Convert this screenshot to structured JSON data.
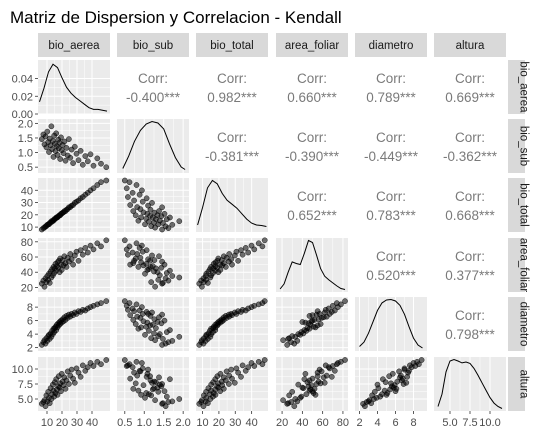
{
  "title": "Matriz de Dispersion y Correlacion - Kendall",
  "variables": [
    "bio_aerea",
    "bio_sub",
    "bio_total",
    "area_foliar",
    "diametro",
    "altura"
  ],
  "colors": {
    "panel_bg": "#ebebeb",
    "grid": "#ffffff",
    "strip_bg": "#d9d9d9",
    "point": "#000000",
    "line": "#000000",
    "corr_text": "#7a7a7a"
  },
  "chart_data": {
    "type": "scatter",
    "subtype": "scatterplot-matrix",
    "title": "Matriz de Dispersion y Correlacion - Kendall",
    "method": "Kendall",
    "diagonal": "density",
    "upper": "correlation",
    "lower": "scatter",
    "axes": [
      {
        "name": "bio_aerea",
        "range": [
          4,
          52
        ],
        "ticks": [
          10,
          20,
          30,
          40
        ],
        "tick_labels": [
          "10",
          "20",
          "30",
          "40"
        ],
        "density_ticks": [
          0.0,
          0.02,
          0.04
        ],
        "density_tick_labels": [
          "0.00",
          "0.02",
          "0.04"
        ],
        "density_max": 0.058
      },
      {
        "name": "bio_sub",
        "range": [
          0.3,
          2.15
        ],
        "ticks": [
          0.5,
          1.0,
          1.5,
          2.0
        ],
        "tick_labels": [
          "0.5",
          "1.0",
          "1.5",
          "2.0"
        ]
      },
      {
        "name": "bio_total",
        "range": [
          6,
          50
        ],
        "ticks": [
          10,
          20,
          30,
          40
        ],
        "tick_labels": [
          "10",
          "20",
          "30",
          "40"
        ]
      },
      {
        "name": "area_foliar",
        "range": [
          14,
          85
        ],
        "ticks": [
          20,
          40,
          60,
          80
        ],
        "tick_labels": [
          "20",
          "40",
          "60",
          "80"
        ]
      },
      {
        "name": "diametro",
        "range": [
          1.5,
          9.5
        ],
        "ticks": [
          2,
          4,
          6,
          8
        ],
        "tick_labels": [
          "2",
          "4",
          "6",
          "8"
        ]
      },
      {
        "name": "altura",
        "range": [
          3.0,
          12.0
        ],
        "ticks": [
          5.0,
          7.5,
          10.0
        ],
        "tick_labels": [
          "5.0",
          "7.5",
          "10.0"
        ]
      }
    ],
    "correlations": [
      {
        "row": "bio_aerea",
        "col": "bio_sub",
        "label": "Corr:",
        "value": "-0.400***"
      },
      {
        "row": "bio_aerea",
        "col": "bio_total",
        "label": "Corr:",
        "value": "0.982***"
      },
      {
        "row": "bio_aerea",
        "col": "area_foliar",
        "label": "Corr:",
        "value": "0.660***"
      },
      {
        "row": "bio_aerea",
        "col": "diametro",
        "label": "Corr:",
        "value": "0.789***"
      },
      {
        "row": "bio_aerea",
        "col": "altura",
        "label": "Corr:",
        "value": "0.669***"
      },
      {
        "row": "bio_sub",
        "col": "bio_total",
        "label": "Corr:",
        "value": "-0.381***"
      },
      {
        "row": "bio_sub",
        "col": "area_foliar",
        "label": "Corr:",
        "value": "-0.390***"
      },
      {
        "row": "bio_sub",
        "col": "diametro",
        "label": "Corr:",
        "value": "-0.449***"
      },
      {
        "row": "bio_sub",
        "col": "altura",
        "label": "Corr:",
        "value": "-0.362***"
      },
      {
        "row": "bio_total",
        "col": "area_foliar",
        "label": "Corr:",
        "value": "0.652***"
      },
      {
        "row": "bio_total",
        "col": "diametro",
        "label": "Corr:",
        "value": "0.783***"
      },
      {
        "row": "bio_total",
        "col": "altura",
        "label": "Corr:",
        "value": "0.668***"
      },
      {
        "row": "area_foliar",
        "col": "diametro",
        "label": "Corr:",
        "value": "0.520***"
      },
      {
        "row": "area_foliar",
        "col": "altura",
        "label": "Corr:",
        "value": "0.377***"
      },
      {
        "row": "diametro",
        "col": "altura",
        "label": "Corr:",
        "value": "0.798***"
      }
    ],
    "densities": {
      "bio_aerea": {
        "x": [
          5,
          8,
          11,
          14,
          17,
          20,
          23,
          26,
          29,
          32,
          35,
          38,
          41,
          44,
          47,
          50
        ],
        "y": [
          0.012,
          0.028,
          0.047,
          0.056,
          0.052,
          0.04,
          0.029,
          0.022,
          0.017,
          0.013,
          0.009,
          0.005,
          0.003,
          0.003,
          0.002,
          0.001
        ]
      },
      "bio_sub": {
        "x": [
          0.45,
          0.6,
          0.75,
          0.9,
          1.05,
          1.2,
          1.35,
          1.5,
          1.65,
          1.8,
          1.95,
          2.05
        ],
        "y": [
          0.05,
          0.3,
          0.6,
          0.82,
          0.95,
          1.0,
          0.97,
          0.85,
          0.55,
          0.27,
          0.08,
          0.03
        ]
      },
      "bio_total": {
        "x": [
          7,
          10,
          13,
          16,
          19,
          22,
          25,
          28,
          31,
          34,
          37,
          40,
          43,
          46,
          49
        ],
        "y": [
          0.1,
          0.45,
          0.85,
          1.0,
          0.93,
          0.74,
          0.6,
          0.52,
          0.44,
          0.33,
          0.22,
          0.14,
          0.1,
          0.09,
          0.07
        ]
      },
      "area_foliar": {
        "x": [
          18,
          22,
          26,
          30,
          34,
          38,
          42,
          46,
          50,
          54,
          58,
          62,
          66,
          70,
          74,
          78,
          82
        ],
        "y": [
          0.02,
          0.12,
          0.35,
          0.55,
          0.52,
          0.5,
          0.72,
          0.97,
          0.93,
          0.68,
          0.42,
          0.27,
          0.2,
          0.14,
          0.08,
          0.03,
          0.01
        ]
      },
      "diametro": {
        "x": [
          2,
          2.5,
          3,
          3.5,
          4,
          4.5,
          5,
          5.5,
          6,
          6.5,
          7,
          7.5,
          8,
          8.5,
          9
        ],
        "y": [
          0.05,
          0.14,
          0.32,
          0.55,
          0.78,
          0.93,
          0.99,
          1.0,
          0.97,
          0.88,
          0.7,
          0.45,
          0.22,
          0.08,
          0.02
        ]
      },
      "altura": {
        "x": [
          3.5,
          4,
          4.5,
          5,
          5.5,
          6,
          6.5,
          7,
          7.5,
          8,
          8.5,
          9,
          9.5,
          10,
          10.5,
          11,
          11.5
        ],
        "y": [
          0.05,
          0.3,
          0.75,
          0.97,
          1.0,
          0.97,
          0.93,
          0.95,
          0.92,
          0.82,
          0.68,
          0.53,
          0.38,
          0.23,
          0.12,
          0.05,
          0.01
        ]
      }
    },
    "observations": [
      {
        "bio_aerea": 6.5,
        "bio_sub": 1.46,
        "bio_total": 8.0,
        "area_foliar": 25,
        "diametro": 2.4,
        "altura": 4.2
      },
      {
        "bio_aerea": 7.6,
        "bio_sub": 1.62,
        "bio_total": 9.2,
        "area_foliar": 29,
        "diametro": 2.8,
        "altura": 4.5
      },
      {
        "bio_aerea": 8.3,
        "bio_sub": 1.28,
        "bio_total": 9.6,
        "area_foliar": 21,
        "diametro": 3.1,
        "altura": 4.8
      },
      {
        "bio_aerea": 9.0,
        "bio_sub": 1.55,
        "bio_total": 10.6,
        "area_foliar": 32,
        "diametro": 2.6,
        "altura": 3.8
      },
      {
        "bio_aerea": 9.6,
        "bio_sub": 1.18,
        "bio_total": 10.8,
        "area_foliar": 27,
        "diametro": 3.4,
        "altura": 5.6
      },
      {
        "bio_aerea": 10.2,
        "bio_sub": 1.72,
        "bio_total": 11.9,
        "area_foliar": 35,
        "diametro": 3.0,
        "altura": 4.6
      },
      {
        "bio_aerea": 10.8,
        "bio_sub": 1.36,
        "bio_total": 12.2,
        "area_foliar": 30,
        "diametro": 3.7,
        "altura": 6.2
      },
      {
        "bio_aerea": 11.3,
        "bio_sub": 1.02,
        "bio_total": 12.3,
        "area_foliar": 38,
        "diametro": 3.9,
        "altura": 5.2
      },
      {
        "bio_aerea": 11.8,
        "bio_sub": 1.48,
        "bio_total": 13.3,
        "area_foliar": 26,
        "diametro": 3.3,
        "altura": 4.3
      },
      {
        "bio_aerea": 12.4,
        "bio_sub": 1.25,
        "bio_total": 13.6,
        "area_foliar": 41,
        "diametro": 4.1,
        "altura": 6.8
      },
      {
        "bio_aerea": 12.9,
        "bio_sub": 1.9,
        "bio_total": 14.8,
        "area_foliar": 33,
        "diametro": 3.6,
        "altura": 5.0
      },
      {
        "bio_aerea": 13.4,
        "bio_sub": 1.12,
        "bio_total": 14.5,
        "area_foliar": 44,
        "diametro": 4.5,
        "altura": 5.8
      },
      {
        "bio_aerea": 13.9,
        "bio_sub": 1.4,
        "bio_total": 15.3,
        "area_foliar": 36,
        "diametro": 4.0,
        "altura": 7.4
      },
      {
        "bio_aerea": 14.3,
        "bio_sub": 0.85,
        "bio_total": 15.2,
        "area_foliar": 47,
        "diametro": 4.8,
        "altura": 6.4
      },
      {
        "bio_aerea": 14.8,
        "bio_sub": 1.58,
        "bio_total": 16.4,
        "area_foliar": 39,
        "diametro": 4.3,
        "altura": 5.4
      },
      {
        "bio_aerea": 15.2,
        "bio_sub": 1.3,
        "bio_total": 16.5,
        "area_foliar": 45,
        "diametro": 4.9,
        "altura": 7.8
      },
      {
        "bio_aerea": 15.7,
        "bio_sub": 1.05,
        "bio_total": 16.8,
        "area_foliar": 51,
        "diametro": 5.1,
        "altura": 6.0
      },
      {
        "bio_aerea": 16.1,
        "bio_sub": 1.66,
        "bio_total": 17.8,
        "area_foliar": 42,
        "diametro": 4.6,
        "altura": 8.3
      },
      {
        "bio_aerea": 16.6,
        "bio_sub": 1.22,
        "bio_total": 17.8,
        "area_foliar": 48,
        "diametro": 5.4,
        "altura": 6.6
      },
      {
        "bio_aerea": 17.0,
        "bio_sub": 0.92,
        "bio_total": 17.9,
        "area_foliar": 53,
        "diametro": 5.0,
        "altura": 5.7
      },
      {
        "bio_aerea": 17.5,
        "bio_sub": 1.44,
        "bio_total": 18.9,
        "area_foliar": 46,
        "diametro": 5.6,
        "altura": 7.1
      },
      {
        "bio_aerea": 17.9,
        "bio_sub": 1.15,
        "bio_total": 19.1,
        "area_foliar": 55,
        "diametro": 5.3,
        "altura": 8.8
      },
      {
        "bio_aerea": 18.4,
        "bio_sub": 1.34,
        "bio_total": 19.7,
        "area_foliar": 40,
        "diametro": 5.8,
        "altura": 6.9
      },
      {
        "bio_aerea": 18.8,
        "bio_sub": 0.78,
        "bio_total": 19.6,
        "area_foliar": 58,
        "diametro": 5.5,
        "altura": 7.6
      },
      {
        "bio_aerea": 19.3,
        "bio_sub": 1.52,
        "bio_total": 20.8,
        "area_foliar": 50,
        "diametro": 6.0,
        "altura": 6.3
      },
      {
        "bio_aerea": 19.8,
        "bio_sub": 1.08,
        "bio_total": 20.9,
        "area_foliar": 43,
        "diametro": 5.7,
        "altura": 9.2
      },
      {
        "bio_aerea": 20.4,
        "bio_sub": 1.26,
        "bio_total": 21.7,
        "area_foliar": 56,
        "diametro": 6.2,
        "altura": 7.9
      },
      {
        "bio_aerea": 21.0,
        "bio_sub": 0.98,
        "bio_total": 22.0,
        "area_foliar": 49,
        "diametro": 5.9,
        "altura": 7.3
      },
      {
        "bio_aerea": 21.6,
        "bio_sub": 1.38,
        "bio_total": 23.0,
        "area_foliar": 61,
        "diametro": 6.5,
        "altura": 8.6
      },
      {
        "bio_aerea": 22.3,
        "bio_sub": 0.72,
        "bio_total": 23.0,
        "area_foliar": 52,
        "diametro": 6.1,
        "altura": 6.7
      },
      {
        "bio_aerea": 23.0,
        "bio_sub": 1.16,
        "bio_total": 24.2,
        "area_foliar": 47,
        "diametro": 6.7,
        "altura": 8.1
      },
      {
        "bio_aerea": 23.8,
        "bio_sub": 0.9,
        "bio_total": 24.7,
        "area_foliar": 59,
        "diametro": 6.4,
        "altura": 9.6
      },
      {
        "bio_aerea": 24.6,
        "bio_sub": 1.46,
        "bio_total": 26.1,
        "area_foliar": 54,
        "diametro": 6.9,
        "altura": 7.5
      },
      {
        "bio_aerea": 25.5,
        "bio_sub": 0.82,
        "bio_total": 26.3,
        "area_foliar": 64,
        "diametro": 6.6,
        "altura": 8.9
      },
      {
        "bio_aerea": 26.4,
        "bio_sub": 1.1,
        "bio_total": 27.5,
        "area_foliar": 57,
        "diametro": 7.0,
        "altura": 9.9
      },
      {
        "bio_aerea": 27.4,
        "bio_sub": 0.64,
        "bio_total": 28.0,
        "area_foliar": 50,
        "diametro": 6.8,
        "altura": 8.4
      },
      {
        "bio_aerea": 28.5,
        "bio_sub": 1.2,
        "bio_total": 29.7,
        "area_foliar": 62,
        "diametro": 7.2,
        "altura": 7.7
      },
      {
        "bio_aerea": 29.7,
        "bio_sub": 0.96,
        "bio_total": 30.7,
        "area_foliar": 67,
        "diametro": 7.0,
        "altura": 10.1
      },
      {
        "bio_aerea": 31.0,
        "bio_sub": 0.74,
        "bio_total": 31.7,
        "area_foliar": 55,
        "diametro": 7.4,
        "altura": 9.4
      },
      {
        "bio_aerea": 32.4,
        "bio_sub": 1.06,
        "bio_total": 33.5,
        "area_foliar": 69,
        "diametro": 7.3,
        "altura": 8.7
      },
      {
        "bio_aerea": 33.9,
        "bio_sub": 0.58,
        "bio_total": 34.5,
        "area_foliar": 63,
        "diametro": 7.6,
        "altura": 10.6
      },
      {
        "bio_aerea": 35.5,
        "bio_sub": 0.88,
        "bio_total": 36.4,
        "area_foliar": 72,
        "diametro": 7.5,
        "altura": 9.7
      },
      {
        "bio_aerea": 37.2,
        "bio_sub": 0.7,
        "bio_total": 37.9,
        "area_foliar": 66,
        "diametro": 7.8,
        "altura": 10.3
      },
      {
        "bio_aerea": 39.0,
        "bio_sub": 0.94,
        "bio_total": 39.9,
        "area_foliar": 75,
        "diametro": 8.0,
        "altura": 11.0
      },
      {
        "bio_aerea": 41.0,
        "bio_sub": 0.55,
        "bio_total": 41.6,
        "area_foliar": 70,
        "diametro": 8.2,
        "altura": 10.5
      },
      {
        "bio_aerea": 43.5,
        "bio_sub": 0.8,
        "bio_total": 44.3,
        "area_foliar": 78,
        "diametro": 8.4,
        "altura": 11.2
      },
      {
        "bio_aerea": 46.0,
        "bio_sub": 0.62,
        "bio_total": 46.6,
        "area_foliar": 74,
        "diametro": 8.6,
        "altura": 10.8
      },
      {
        "bio_aerea": 49.5,
        "bio_sub": 0.5,
        "bio_total": 48.0,
        "area_foliar": 82,
        "diametro": 8.9,
        "altura": 11.5
      }
    ]
  }
}
